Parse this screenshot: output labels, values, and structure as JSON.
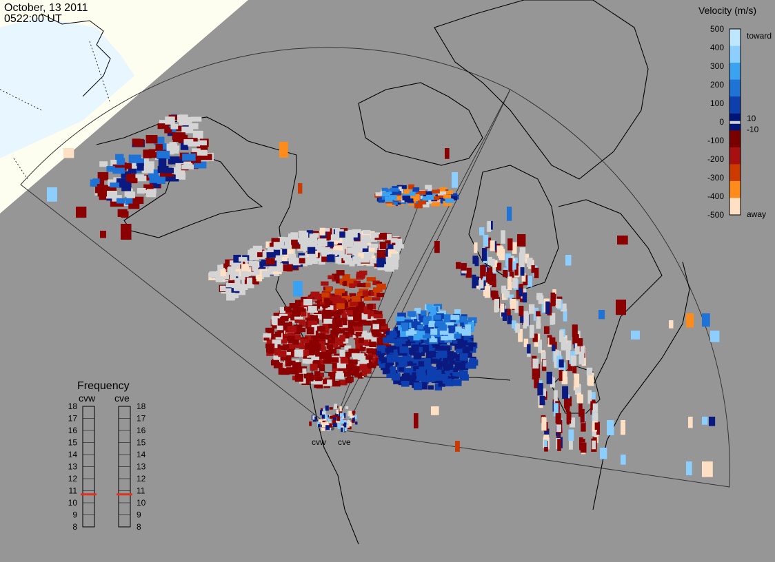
{
  "header": {
    "date": "October, 13 2011",
    "time": "0522:00 UT"
  },
  "velocity_scale": {
    "title": "Velocity (m/s)",
    "ticks": [
      "500",
      "400",
      "300",
      "200",
      "100",
      "0",
      "-100",
      "-200",
      "-300",
      "-400",
      "-500"
    ],
    "inner_ticks": [
      "10",
      "-10"
    ],
    "toward_label": "toward",
    "away_label": "away",
    "colors": [
      "#bfe6ff",
      "#8ccfff",
      "#3aa2f0",
      "#1f72d6",
      "#0e3fae",
      "#00157a",
      "#7a0000",
      "#a81010",
      "#cc3a00",
      "#ff8c1a",
      "#ffe0c4"
    ]
  },
  "frequency": {
    "title": "Frequency",
    "radars": [
      {
        "name": "cvw",
        "selected_mhz": 10.7
      },
      {
        "name": "cve",
        "selected_mhz": 10.7
      }
    ],
    "ticks": [
      "18",
      "17",
      "16",
      "15",
      "14",
      "13",
      "12",
      "11",
      "10",
      "9",
      "8"
    ]
  },
  "radar_sites": [
    {
      "name": "cvw"
    },
    {
      "name": "cve"
    }
  ],
  "map_colors": {
    "background": "#969696",
    "daylight": "#fdfdf0",
    "ocean_daylight": "#e8f6ff",
    "ground_scatter": "#d4d4d4"
  }
}
